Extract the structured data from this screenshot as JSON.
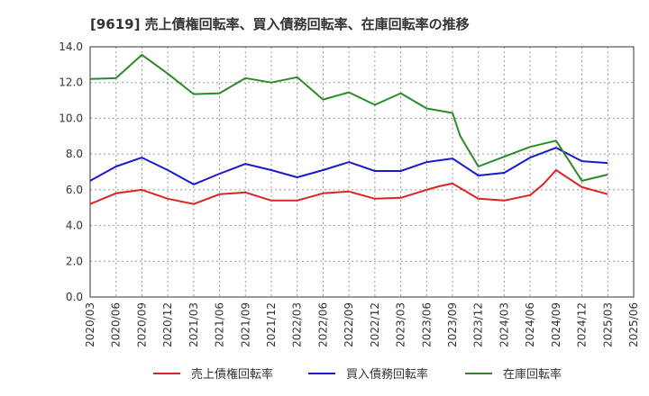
{
  "chart_data": {
    "type": "line",
    "title": "[9619]  売上債権回転率、買入債務回転率、在庫回転率の推移",
    "xlabel": "",
    "ylabel": "",
    "ylim": [
      0,
      14
    ],
    "yticks": [
      "0.0",
      "2.0",
      "4.0",
      "6.0",
      "8.0",
      "10.0",
      "12.0",
      "14.0"
    ],
    "x": [
      "2020/03",
      "2020/06",
      "2020/09",
      "2020/12",
      "2021/03",
      "2021/06",
      "2021/09",
      "2021/12",
      "2022/03",
      "2022/06",
      "2022/09",
      "2022/12",
      "2023/03",
      "2023/06",
      "2023/09",
      "2023/12",
      "2024/03",
      "2024/06",
      "2024/09",
      "2024/12",
      "2025/03",
      "2025/06"
    ],
    "legend_position": "bottom",
    "grid": true,
    "series": [
      {
        "name": "売上債権回転率",
        "color": "#dd2222",
        "values": [
          5.2,
          5.8,
          6.0,
          5.5,
          5.2,
          5.75,
          5.85,
          5.4,
          5.4,
          5.8,
          5.9,
          5.5,
          5.55,
          6.0,
          6.35,
          5.5,
          5.4,
          5.7,
          7.1,
          6.15,
          5.75,
          null
        ],
        "extra": [
          {
            "after_index": 13,
            "x_offset": 0.5,
            "value": 6.2
          },
          {
            "after_index": 17,
            "x_offset": 0.5,
            "value": 6.3
          }
        ]
      },
      {
        "name": "買入債務回転率",
        "color": "#1a1acc",
        "values": [
          6.5,
          7.3,
          7.8,
          7.1,
          6.3,
          6.9,
          7.45,
          7.1,
          6.7,
          7.1,
          7.55,
          7.05,
          7.05,
          7.55,
          7.75,
          6.8,
          6.95,
          7.8,
          8.35,
          7.6,
          7.5,
          null
        ]
      },
      {
        "name": "在庫回転率",
        "color": "#2a8a2a",
        "values": [
          12.2,
          12.25,
          13.55,
          12.5,
          11.35,
          11.4,
          12.25,
          12.0,
          12.3,
          11.05,
          11.45,
          10.75,
          11.4,
          10.55,
          10.3,
          7.3,
          7.85,
          8.4,
          8.75,
          6.5,
          6.85,
          null
        ],
        "extra": [
          {
            "after_index": 14,
            "x_offset": 0.3,
            "value": 9.0
          }
        ]
      }
    ]
  }
}
